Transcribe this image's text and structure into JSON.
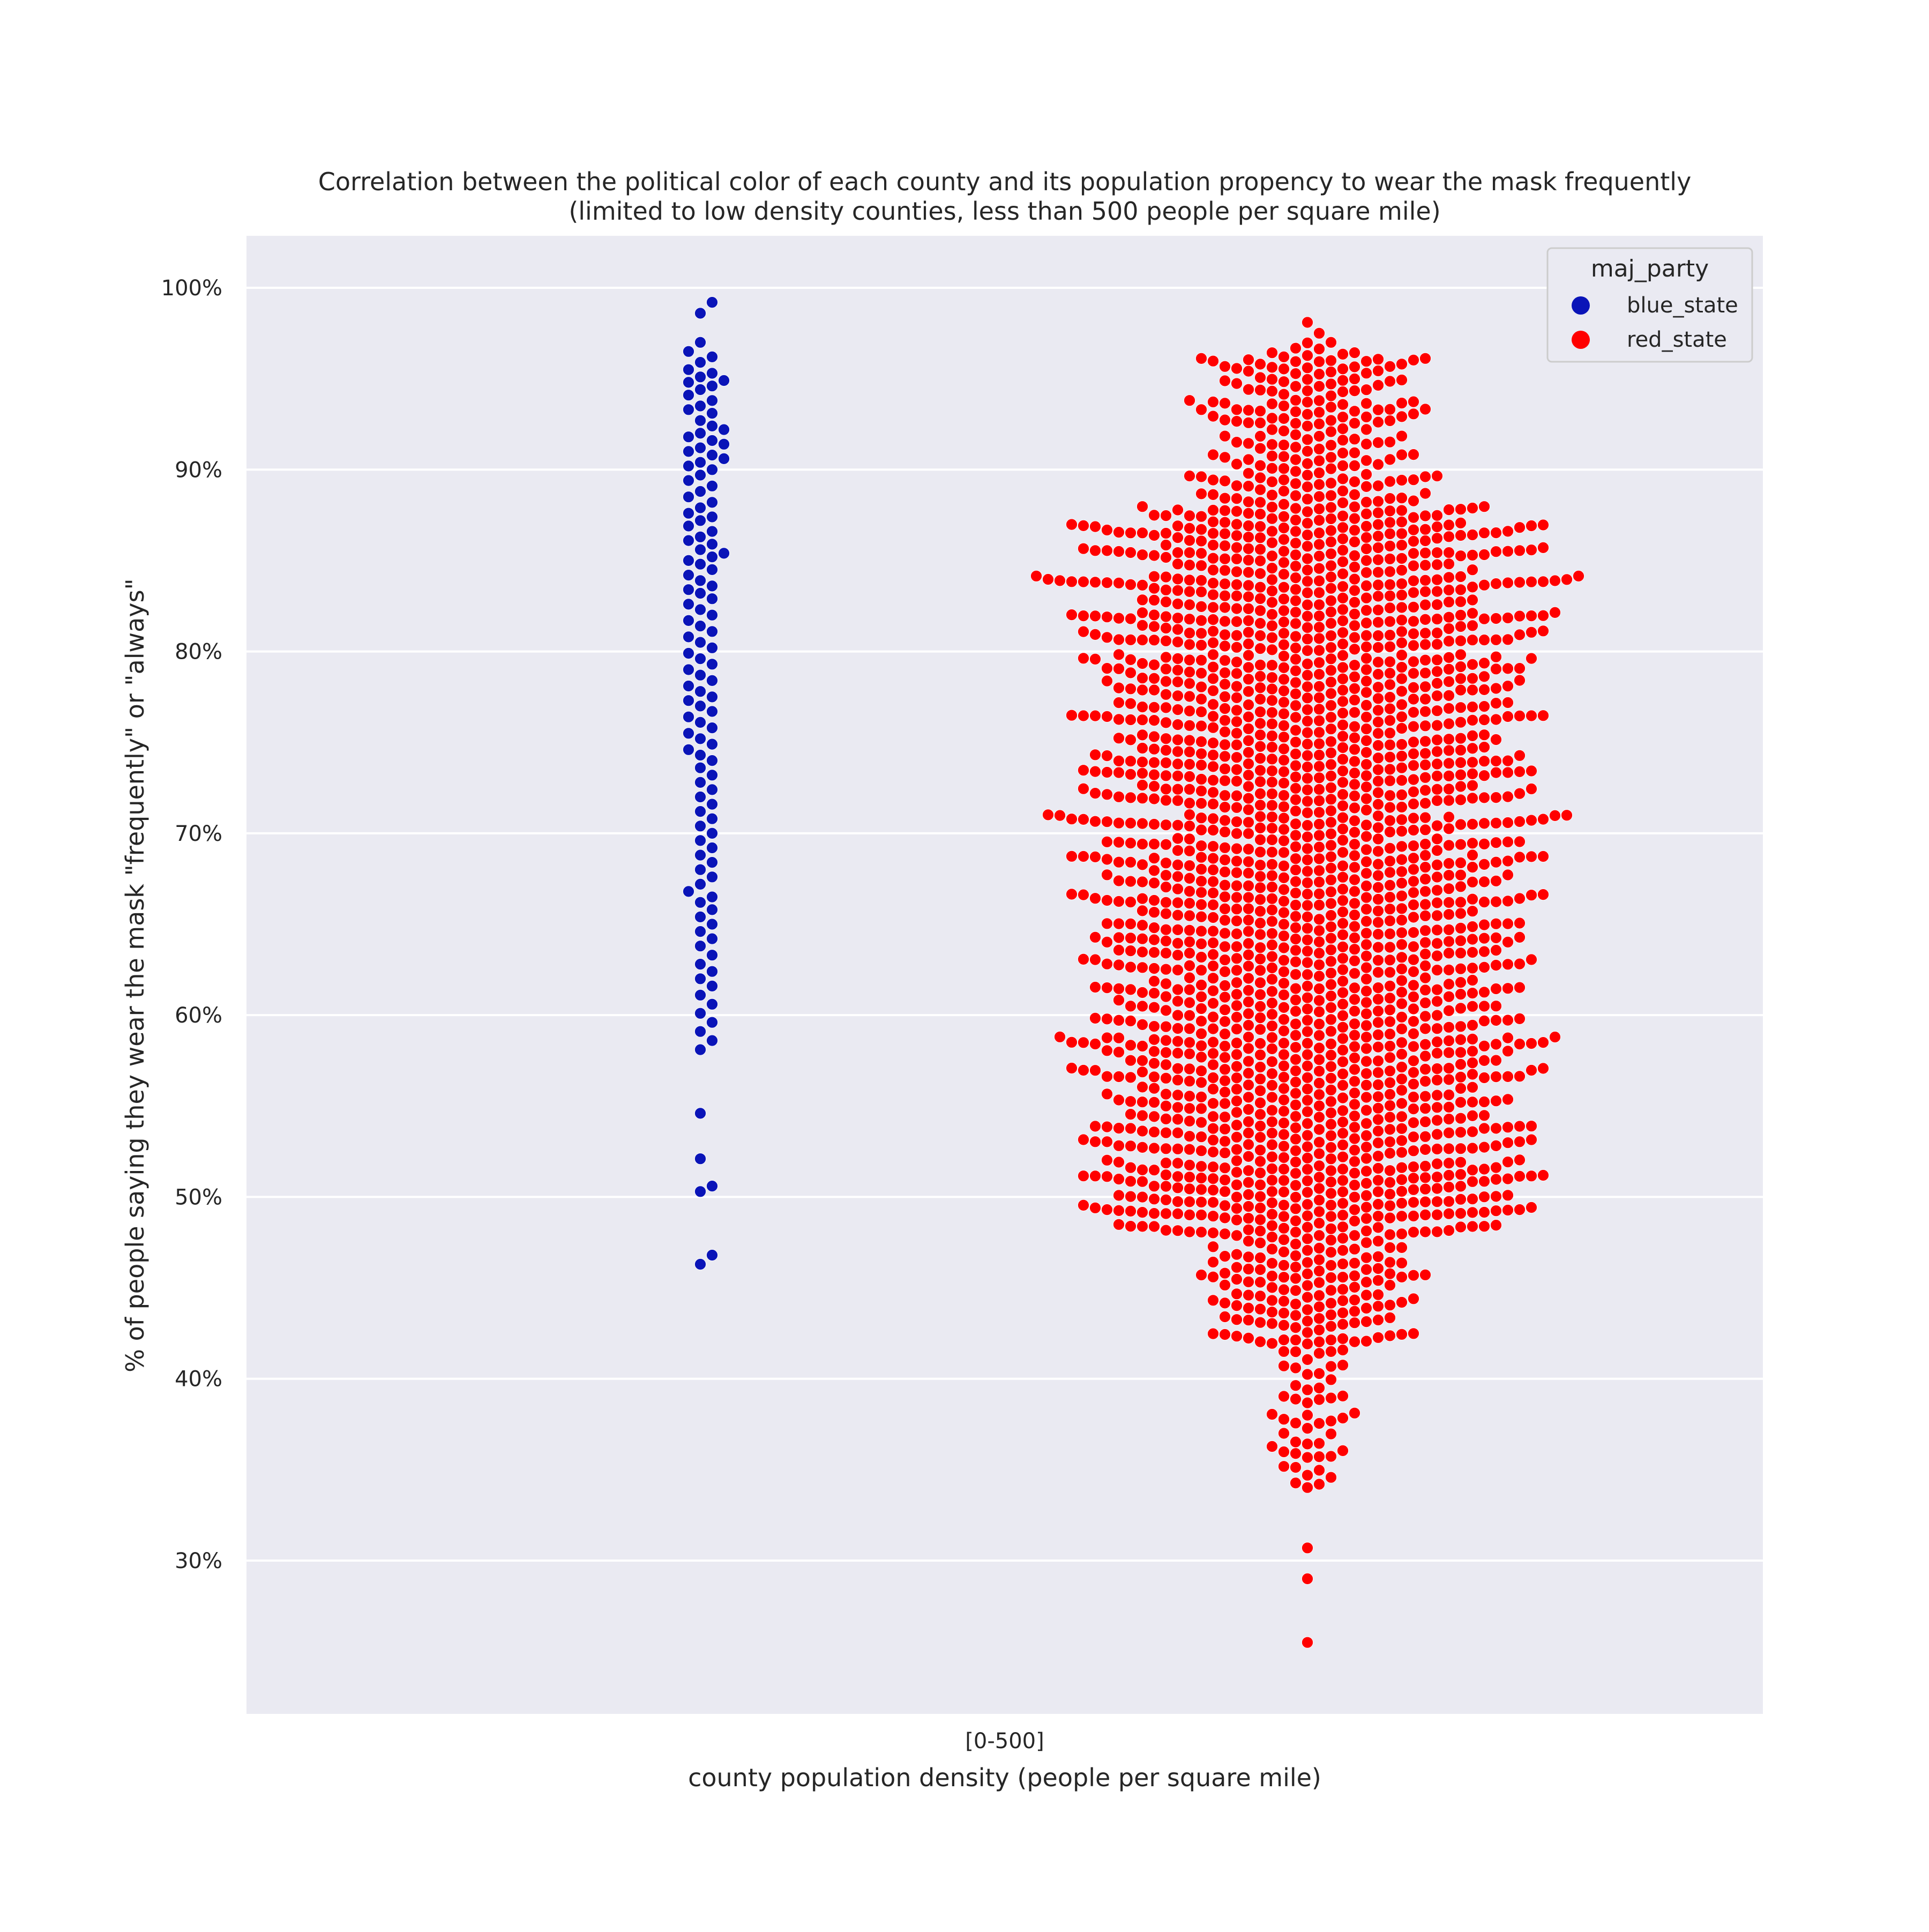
{
  "chart_data": {
    "type": "scatter",
    "subtype": "swarm",
    "title": "Correlation between the political color of each county and its population propency to wear the mask frequently",
    "subtitle": "(limited to low density counties, less than 500 people per square mile)",
    "xlabel": "county population density (people per square mile)",
    "ylabel": "% of people saying they wear the mask \"frequently\" or \"always\"",
    "categories": [
      "[0-500]"
    ],
    "yticks": [
      "30%",
      "40%",
      "50%",
      "60%",
      "70%",
      "80%",
      "90%",
      "100%"
    ],
    "ytick_values": [
      30,
      40,
      50,
      60,
      70,
      80,
      90,
      100
    ],
    "ylim": [
      22,
      103
    ],
    "grid": true,
    "legend": {
      "title": "maj_party",
      "placement": "top-right",
      "entries": [
        {
          "label": "blue_state",
          "color": "#0a14b8"
        },
        {
          "label": "red_state",
          "color": "#ff0000"
        }
      ]
    },
    "series": [
      {
        "name": "blue_state",
        "color": "#0a14b8",
        "count": 300,
        "values": [
          99.2,
          98.6,
          97.0,
          96.5,
          96.2,
          95.9,
          95.5,
          95.3,
          95.1,
          94.9,
          94.8,
          94.6,
          94.4,
          94.1,
          93.8,
          93.5,
          93.3,
          93.1,
          92.7,
          92.4,
          92.2,
          92.0,
          91.8,
          91.6,
          91.4,
          91.2,
          91.0,
          90.8,
          90.6,
          90.4,
          90.2,
          90.0,
          89.7,
          89.4,
          89.1,
          88.8,
          88.5,
          88.2,
          87.9,
          87.6,
          87.4,
          87.2,
          86.9,
          86.6,
          86.3,
          86.1,
          85.9,
          85.6,
          85.4,
          85.2,
          85.0,
          84.8,
          84.5,
          84.2,
          83.9,
          83.6,
          83.4,
          83.2,
          82.9,
          82.6,
          82.3,
          82.0,
          81.7,
          81.4,
          81.1,
          80.8,
          80.5,
          80.2,
          79.9,
          79.6,
          79.3,
          79.0,
          78.7,
          78.4,
          78.1,
          77.8,
          77.5,
          77.3,
          77.0,
          76.7,
          76.4,
          76.1,
          75.8,
          75.5,
          75.2,
          74.9,
          74.6,
          74.3,
          74.0,
          73.6,
          73.2,
          72.8,
          72.4,
          72.0,
          71.6,
          71.2,
          70.8,
          70.4,
          70.0,
          69.6,
          69.2,
          68.8,
          68.4,
          68.0,
          67.6,
          67.2,
          66.8,
          66.5,
          66.2,
          65.8,
          65.4,
          65.0,
          64.6,
          64.2,
          63.8,
          63.3,
          62.8,
          62.4,
          62.0,
          61.6,
          61.1,
          60.6,
          60.1,
          59.6,
          59.1,
          58.6,
          58.1,
          54.6,
          52.1,
          50.6,
          50.3,
          46.8,
          46.3
        ],
        "x_ticks_note": null
      },
      {
        "name": "red_state",
        "color": "#ff0000",
        "count": 2400,
        "min": 25.5,
        "max": 98.1
      }
    ]
  }
}
